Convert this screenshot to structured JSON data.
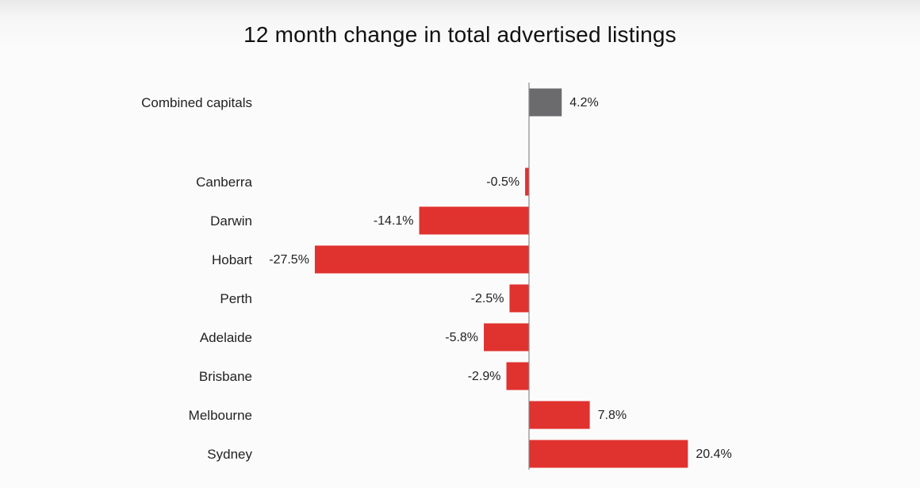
{
  "chart_data": {
    "type": "bar",
    "orientation": "horizontal",
    "title": "12 month change in total advertised listings",
    "xlabel": "",
    "ylabel": "",
    "categories": [
      "Combined capitals",
      "Canberra",
      "Darwin",
      "Hobart",
      "Perth",
      "Adelaide",
      "Brisbane",
      "Melbourne",
      "Sydney"
    ],
    "values": [
      4.2,
      -0.5,
      -14.1,
      -27.5,
      -2.5,
      -5.8,
      -2.9,
      7.8,
      20.4
    ],
    "value_labels": [
      "4.2%",
      "-0.5%",
      "-14.1%",
      "-27.5%",
      "-2.5%",
      "-5.8%",
      "-2.9%",
      "7.8%",
      "20.4%"
    ],
    "unit": "%",
    "xlim": [
      -27.5,
      20.4
    ],
    "grid": false,
    "legend": "none",
    "colors": {
      "combined": "#6b6b6e",
      "city": "#e0322f",
      "axis": "#8a8a8a"
    }
  }
}
